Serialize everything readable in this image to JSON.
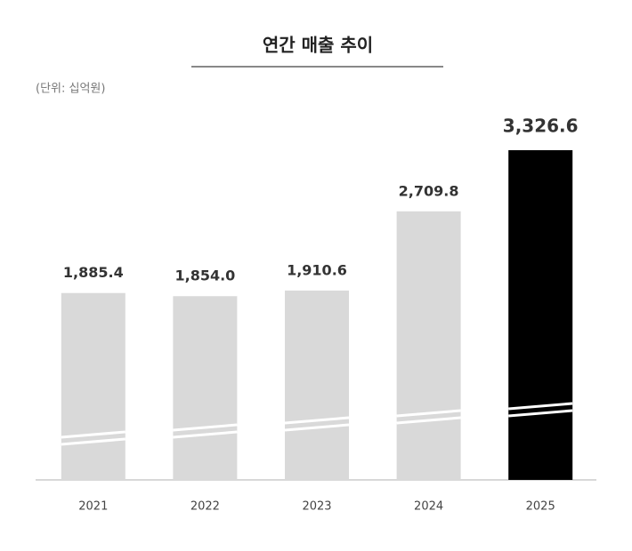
{
  "chart_data": {
    "type": "bar",
    "title": "연간 매출 추이",
    "subtitle": "(단위: 십억원)",
    "categories": [
      "2021",
      "2022",
      "2023",
      "2024",
      "2025"
    ],
    "values": [
      1885.4,
      1854.0,
      1910.6,
      2709.8,
      3326.6
    ],
    "value_labels": [
      "1,885.4",
      "1,854.0",
      "1,910.6",
      "2,709.8",
      "3,326.6"
    ],
    "colors": [
      "#d9d9d9",
      "#d9d9d9",
      "#d9d9d9",
      "#d9d9d9",
      "#000000"
    ]
  }
}
